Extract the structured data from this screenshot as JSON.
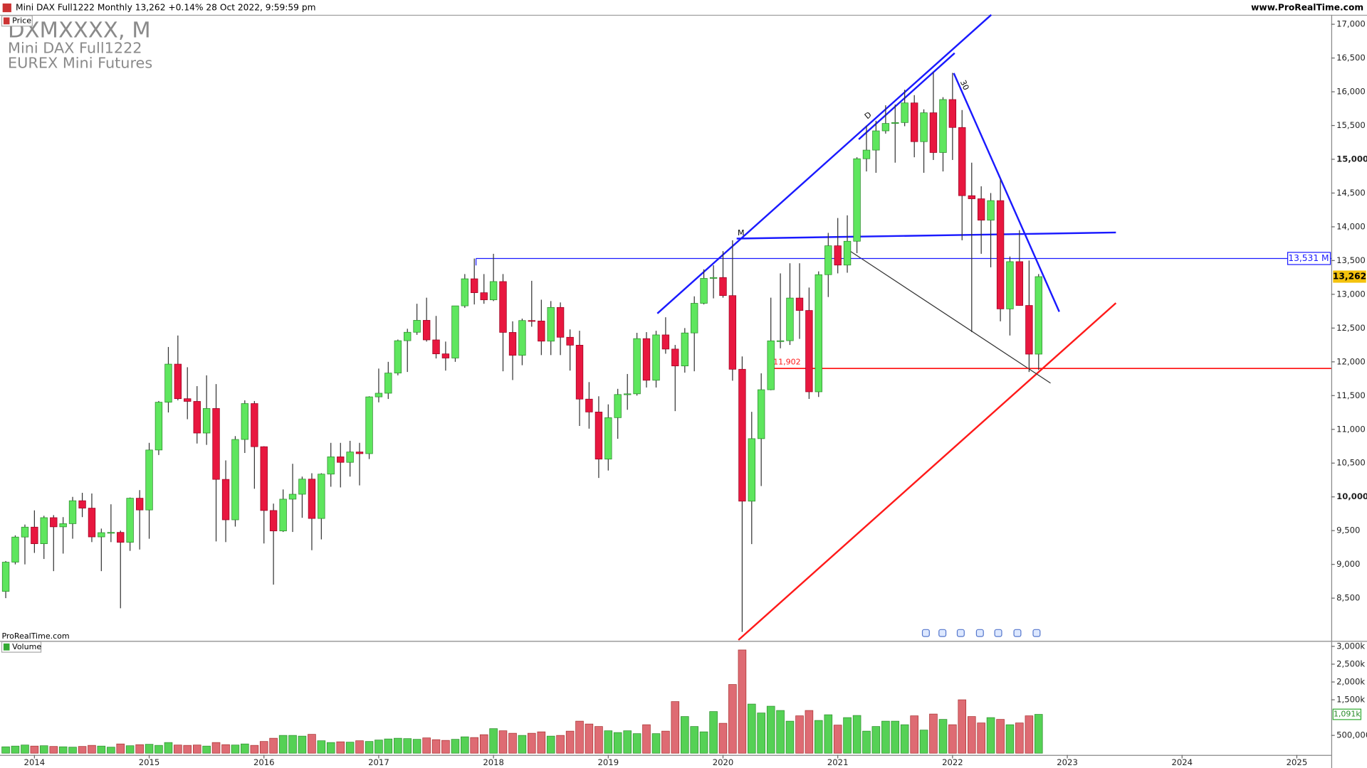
{
  "header": {
    "title": "Mini DAX Full1222 Monthly 13,262 +0.14% 28 Oct 2022, 9:59:59 pm",
    "site": "www.ProRealTime.com"
  },
  "instrument": {
    "code": "DXMXXXX, M",
    "name": "Mini DAX Full1222",
    "exchange": "EUREX Mini Futures"
  },
  "panels": {
    "price": "Price",
    "volume": "Volume",
    "credit": "ProRealTime.com"
  },
  "drawing_labels": [
    "M",
    "D",
    "30"
  ],
  "chart_data": {
    "type": "candlestick",
    "x": [
      2013.75,
      2013.833,
      2013.917,
      2014,
      2014.083,
      2014.167,
      2014.25,
      2014.333,
      2014.417,
      2014.5,
      2014.583,
      2014.667,
      2014.75,
      2014.833,
      2014.917,
      2015,
      2015.083,
      2015.167,
      2015.25,
      2015.333,
      2015.417,
      2015.5,
      2015.583,
      2015.667,
      2015.75,
      2015.833,
      2015.917,
      2016,
      2016.083,
      2016.167,
      2016.25,
      2016.333,
      2016.417,
      2016.5,
      2016.583,
      2016.667,
      2016.75,
      2016.833,
      2016.917,
      2017,
      2017.083,
      2017.167,
      2017.25,
      2017.333,
      2017.417,
      2017.5,
      2017.583,
      2017.667,
      2017.75,
      2017.833,
      2017.917,
      2018,
      2018.083,
      2018.167,
      2018.25,
      2018.333,
      2018.417,
      2018.5,
      2018.583,
      2018.667,
      2018.75,
      2018.833,
      2018.917,
      2019,
      2019.083,
      2019.167,
      2019.25,
      2019.333,
      2019.417,
      2019.5,
      2019.583,
      2019.667,
      2019.75,
      2019.833,
      2019.917,
      2020,
      2020.083,
      2020.167,
      2020.25,
      2020.333,
      2020.417,
      2020.5,
      2020.583,
      2020.667,
      2020.75,
      2020.833,
      2020.917,
      2021,
      2021.083,
      2021.167,
      2021.25,
      2021.333,
      2021.417,
      2021.5,
      2021.583,
      2021.667,
      2021.75,
      2021.833,
      2021.917,
      2022,
      2022.083,
      2022.167,
      2022.25,
      2022.333,
      2022.417,
      2022.5,
      2022.583,
      2022.667,
      2022.75
    ],
    "open": [
      8600,
      9033,
      9405,
      9552,
      9306,
      9692,
      9556,
      9603,
      9943,
      9833,
      9407,
      9470,
      9474,
      9327,
      9980,
      9806,
      10694,
      11402,
      11966,
      11454,
      11414,
      10945,
      11309,
      10259,
      9660,
      10850,
      11382,
      10743,
      9798,
      9495,
      9966,
      10039,
      10263,
      9680,
      10337,
      10593,
      10511,
      10665,
      10640,
      11481,
      11535,
      11834,
      12313,
      12438,
      12615,
      12325,
      12118,
      12056,
      12829,
      13230,
      13024,
      12918,
      13189,
      12436,
      12097,
      12612,
      12605,
      12306,
      12806,
      12364,
      12247,
      11448,
      11257,
      10559,
      11173,
      11516,
      11526,
      12344,
      11727,
      12399,
      12189,
      11939,
      12428,
      12867,
      13236,
      13249,
      12981,
      11890,
      9936,
      10862,
      11587,
      12311,
      12313,
      12945,
      12761,
      11556,
      13291,
      13719,
      13433,
      13786,
      15008,
      15136,
      15421,
      15531,
      15544,
      15835,
      15261,
      15689,
      15100,
      15885,
      15471,
      14461,
      14415,
      14098,
      14388,
      12784,
      13484,
      12835,
      12114
    ],
    "high": [
      9050,
      9430,
      9590,
      9800,
      9720,
      9730,
      9700,
      10000,
      10060,
      10050,
      9530,
      9890,
      9500,
      9990,
      10100,
      10800,
      11420,
      12220,
      12390,
      11920,
      11640,
      11800,
      11670,
      10540,
      10900,
      11430,
      11420,
      10750,
      9900,
      10110,
      10490,
      10300,
      10350,
      10350,
      10800,
      10800,
      10830,
      10800,
      11490,
      11900,
      12000,
      12330,
      12490,
      12860,
      12950,
      12680,
      12300,
      12830,
      13300,
      13530,
      13300,
      13600,
      13300,
      12600,
      12640,
      13200,
      12920,
      12900,
      12880,
      12480,
      12460,
      11700,
      11490,
      11370,
      11600,
      11820,
      12430,
      12440,
      12460,
      12660,
      12250,
      12500,
      12970,
      13370,
      13430,
      13640,
      13800,
      12080,
      11260,
      11830,
      12950,
      13310,
      13460,
      13460,
      13100,
      13340,
      13910,
      14130,
      14170,
      15030,
      15500,
      15570,
      15800,
      15810,
      16030,
      15950,
      15740,
      16290,
      15920,
      16280,
      15730,
      14950,
      14600,
      14500,
      14700,
      13560,
      13950,
      13500,
      13300
    ],
    "low": [
      8500,
      9000,
      9000,
      9170,
      9080,
      8900,
      9160,
      9380,
      9700,
      9330,
      8900,
      9330,
      8350,
      9200,
      9220,
      9380,
      10620,
      11250,
      11430,
      11150,
      10790,
      10770,
      9340,
      9330,
      9560,
      10650,
      10120,
      9310,
      8700,
      9480,
      9480,
      9690,
      9210,
      9370,
      10150,
      10140,
      10300,
      10170,
      10560,
      11400,
      11450,
      11800,
      11850,
      12400,
      12300,
      12050,
      11870,
      12000,
      12800,
      12850,
      12860,
      12900,
      11860,
      11730,
      11950,
      12520,
      12100,
      12100,
      12100,
      11870,
      11050,
      11010,
      10280,
      10390,
      10860,
      11290,
      11500,
      11620,
      11620,
      12120,
      11270,
      11840,
      11860,
      12850,
      12940,
      12950,
      11720,
      8000,
      9300,
      10160,
      11580,
      12200,
      12250,
      12340,
      11450,
      11480,
      12960,
      13310,
      13320,
      13610,
      14820,
      14800,
      15380,
      14950,
      15490,
      15030,
      14800,
      14990,
      14820,
      14990,
      13800,
      12440,
      13600,
      13400,
      12600,
      12390,
      12830,
      11850,
      11880
    ],
    "close": [
      9033,
      9405,
      9552,
      9306,
      9692,
      9556,
      9603,
      9943,
      9833,
      9407,
      9470,
      9474,
      9327,
      9980,
      9806,
      10694,
      11402,
      11966,
      11454,
      11414,
      10945,
      11309,
      10259,
      9660,
      10850,
      11382,
      10743,
      9798,
      9495,
      9966,
      10039,
      10263,
      9680,
      10337,
      10593,
      10511,
      10665,
      10640,
      11481,
      11535,
      11834,
      12313,
      12438,
      12615,
      12325,
      12118,
      12056,
      12829,
      13230,
      13024,
      12918,
      13189,
      12436,
      12097,
      12612,
      12605,
      12306,
      12806,
      12364,
      12247,
      11448,
      11257,
      10559,
      11173,
      11516,
      11526,
      12344,
      11727,
      12399,
      12189,
      11939,
      12428,
      12867,
      13236,
      13249,
      12981,
      11890,
      9936,
      10862,
      11587,
      12311,
      12313,
      12945,
      12761,
      11556,
      13291,
      13719,
      13433,
      13786,
      15008,
      15136,
      15421,
      15531,
      15544,
      15835,
      15261,
      15689,
      15100,
      15885,
      15471,
      14461,
      14415,
      14098,
      14388,
      12784,
      13484,
      12835,
      12114,
      13262
    ],
    "volume": [
      180000,
      200000,
      230000,
      200000,
      210000,
      190000,
      180000,
      170000,
      190000,
      220000,
      200000,
      170000,
      260000,
      210000,
      240000,
      250000,
      220000,
      300000,
      230000,
      220000,
      230000,
      200000,
      300000,
      240000,
      230000,
      260000,
      220000,
      330000,
      420000,
      500000,
      500000,
      480000,
      530000,
      350000,
      300000,
      320000,
      310000,
      350000,
      330000,
      370000,
      400000,
      420000,
      410000,
      390000,
      430000,
      380000,
      360000,
      390000,
      460000,
      440000,
      520000,
      690000,
      630000,
      560000,
      500000,
      560000,
      600000,
      480000,
      500000,
      620000,
      900000,
      820000,
      750000,
      630000,
      580000,
      630000,
      550000,
      800000,
      550000,
      620000,
      1450000,
      1030000,
      750000,
      600000,
      1170000,
      840000,
      1930000,
      2900000,
      1380000,
      1130000,
      1320000,
      1200000,
      900000,
      1050000,
      1200000,
      920000,
      1080000,
      790000,
      1000000,
      1060000,
      620000,
      750000,
      900000,
      900000,
      800000,
      1050000,
      650000,
      1100000,
      950000,
      800000,
      1500000,
      1030000,
      850000,
      1000000,
      950000,
      800000,
      850000,
      1050000,
      1091000
    ],
    "up_color": "#5ee65e",
    "down_color": "#e8173f",
    "volume_up_color": "#55d155",
    "volume_down_color": "#de6b73",
    "xlim": [
      2013.7,
      2025.3
    ],
    "xticks": [
      2014,
      2015,
      2016,
      2017,
      2018,
      2019,
      2020,
      2021,
      2022,
      2023,
      2024,
      2025
    ],
    "ylim": [
      7880,
      17140
    ],
    "yticks": [
      {
        "value": 8500,
        "label": "8,500"
      },
      {
        "value": 9000,
        "label": "9,000"
      },
      {
        "value": 9500,
        "label": "9,500"
      },
      {
        "value": 10000,
        "label": "10,000"
      },
      {
        "value": 10500,
        "label": "10,500"
      },
      {
        "value": 11000,
        "label": "11,000"
      },
      {
        "value": 11500,
        "label": "11,500"
      },
      {
        "value": 12000,
        "label": "12,000"
      },
      {
        "value": 12500,
        "label": "12,500"
      },
      {
        "value": 13000,
        "label": "13,000"
      },
      {
        "value": 13500,
        "label": "13,500"
      },
      {
        "value": 14000,
        "label": "14,000"
      },
      {
        "value": 14500,
        "label": "14,500"
      },
      {
        "value": 15000,
        "label": "15,000"
      },
      {
        "value": 15500,
        "label": "15,500"
      },
      {
        "value": 16000,
        "label": "16,000"
      },
      {
        "value": 16500,
        "label": "16,500"
      },
      {
        "value": 17000,
        "label": "17,000"
      }
    ],
    "y2lim": [
      0,
      3130000
    ],
    "y2ticks": [
      {
        "value": 500000,
        "label": "500,000"
      },
      {
        "value": 1500000,
        "label": "1,500k"
      },
      {
        "value": 2000000,
        "label": "2,000k"
      },
      {
        "value": 2500000,
        "label": "2,500k"
      },
      {
        "value": 3000000,
        "label": "3,000k"
      }
    ],
    "levels": [
      {
        "value": 13531,
        "label": "13,531 M",
        "color": "#1a1aff"
      },
      {
        "value": 11902,
        "label": "11,902",
        "color": "#ff1a1a"
      }
    ],
    "last_price": {
      "value": 13262,
      "label": "13,262"
    },
    "last_volume": {
      "value": 1091000,
      "label": "1,091k"
    }
  }
}
